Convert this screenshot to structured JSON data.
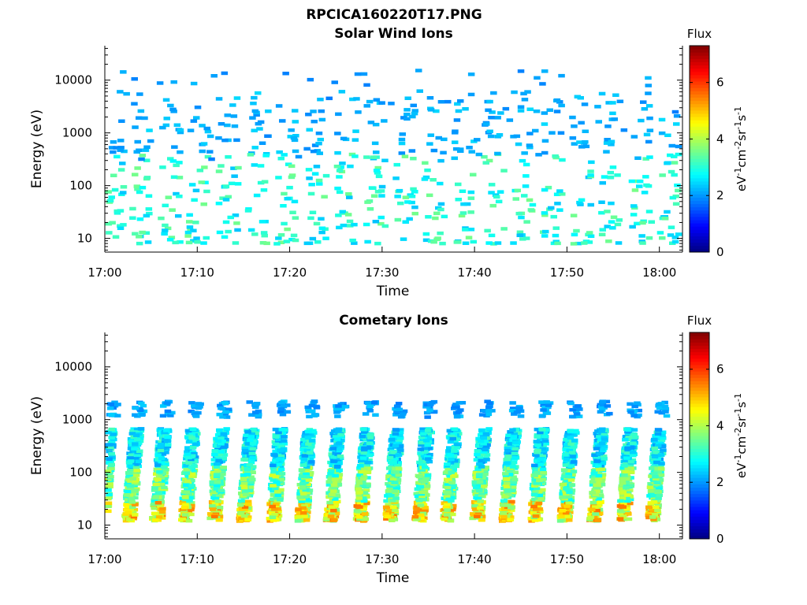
{
  "figure": {
    "title": "RPCICA160220T17.PNG"
  },
  "chart_data": [
    {
      "type": "heatmap",
      "title": "Solar Wind Ions",
      "xlabel": "Time",
      "ylabel": "Energy (eV)",
      "x_ticks": [
        "17:00",
        "17:10",
        "17:20",
        "17:30",
        "17:40",
        "17:50",
        "18:00"
      ],
      "x_range_minutes": [
        0,
        62.5
      ],
      "y_scale": "log",
      "y_ticks": [
        10,
        100,
        1000,
        10000
      ],
      "y_tick_labels": [
        "10",
        "100",
        "1000",
        "10000"
      ],
      "ylim": [
        5.5,
        45000
      ],
      "colorbar": {
        "title": "Flux",
        "label": "eV-1cm-2sr-1s-1",
        "label_parts": [
          "eV",
          "-1",
          "cm",
          "-2",
          "sr",
          "-1",
          "s",
          "-1"
        ],
        "range": [
          0,
          7.3
        ],
        "ticks": [
          0,
          2,
          4,
          6
        ],
        "tick_labels": [
          "0",
          "2",
          "4",
          "6"
        ]
      },
      "colormap": "jet",
      "pattern": {
        "pulse_centers_minutes": [
          0.2,
          3.3,
          6.3,
          9.3,
          12.6,
          15.8,
          18.9,
          22.2,
          25.4,
          28.5,
          31.8,
          34.9,
          38.1,
          41.3,
          44.5,
          47.6,
          50.8,
          54.0,
          57.3,
          60.4
        ],
        "description_values": "sparse cyan-blue points, 2-3 flux, up to ~1.5e4 eV, mostly below 3000 eV",
        "flux_typical_range": [
          2.0,
          3.8
        ]
      }
    },
    {
      "type": "heatmap",
      "title": "Cometary Ions",
      "xlabel": "Time",
      "ylabel": "Energy (eV)",
      "x_ticks": [
        "17:00",
        "17:10",
        "17:20",
        "17:30",
        "17:40",
        "17:50",
        "18:00"
      ],
      "x_range_minutes": [
        0,
        62.5
      ],
      "y_scale": "log",
      "y_ticks": [
        10,
        100,
        1000,
        10000
      ],
      "y_tick_labels": [
        "10",
        "100",
        "1000",
        "10000"
      ],
      "ylim": [
        5.5,
        45000
      ],
      "colorbar": {
        "title": "Flux",
        "label": "eV-1cm-2sr-1s-1",
        "label_parts": [
          "eV",
          "-1",
          "cm",
          "-2",
          "sr",
          "-1",
          "s",
          "-1"
        ],
        "range": [
          0,
          7.3
        ],
        "ticks": [
          0,
          2,
          4,
          6
        ],
        "tick_labels": [
          "0",
          "2",
          "4",
          "6"
        ]
      },
      "colormap": "jet",
      "pattern": {
        "pulse_centers_minutes": [
          0.3,
          3.2,
          6.2,
          9.3,
          12.4,
          15.6,
          18.8,
          21.9,
          25.0,
          28.2,
          31.4,
          34.6,
          37.6,
          40.8,
          44.0,
          47.1,
          50.3,
          53.5,
          56.7,
          59.8
        ],
        "dense_energy_range_eV": [
          12,
          700
        ],
        "sparse_top_energy_eV": [
          1100,
          2200
        ],
        "peak_energy_eV": 20,
        "flux_typical_range": [
          2.0,
          5.6
        ]
      }
    }
  ]
}
